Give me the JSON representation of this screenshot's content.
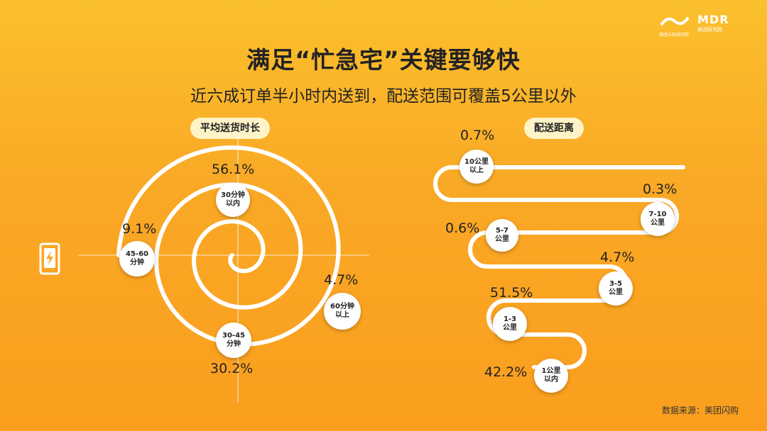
{
  "brand": {
    "logo_text": "MDR",
    "logo_sub": "美团研究院",
    "logo_left_sub": "美团卡前研究院"
  },
  "title": "满足“忙急宅”关键要够快",
  "subtitle": "近六成订单半小时内送到，配送范围可覆盖5公里以外",
  "source": "数据来源：美团闪购",
  "colors": {
    "background": "#f9a825",
    "line": "#ffffff",
    "pill": "#fff4c8"
  },
  "chart_data": [
    {
      "type": "spiral",
      "title": "平均送货时长",
      "categories": [
        "30分钟以内",
        "30-45分钟",
        "45-60分钟",
        "60分钟以上"
      ],
      "labels": [
        {
          "top": "30分钟",
          "bottom": "以内"
        },
        {
          "top": "30-45",
          "bottom": "分钟"
        },
        {
          "top": "45-60",
          "bottom": "分钟"
        },
        {
          "top": "60分钟",
          "bottom": "以上"
        }
      ],
      "value_labels": [
        "56.1%",
        "30.2%",
        "9.1%",
        "4.7%"
      ],
      "values": [
        56.1,
        30.2,
        9.1,
        4.7
      ],
      "unit": "%"
    },
    {
      "type": "snake",
      "title": "配送距离",
      "categories": [
        "10公里以上",
        "7-10公里",
        "5-7公里",
        "3-5公里",
        "1-3公里",
        "1公里以内"
      ],
      "labels": [
        {
          "top": "10公里",
          "bottom": "以上"
        },
        {
          "top": "7-10",
          "bottom": "公里"
        },
        {
          "top": "5-7",
          "bottom": "公里"
        },
        {
          "top": "3-5",
          "bottom": "公里"
        },
        {
          "top": "1-3",
          "bottom": "公里"
        },
        {
          "top": "1公里",
          "bottom": "以内"
        }
      ],
      "value_labels": [
        "0.7%",
        "0.3%",
        "0.6%",
        "4.7%",
        "51.5%",
        "42.2%"
      ],
      "values": [
        0.7,
        0.3,
        0.6,
        4.7,
        51.5,
        42.2
      ],
      "unit": "%"
    }
  ]
}
